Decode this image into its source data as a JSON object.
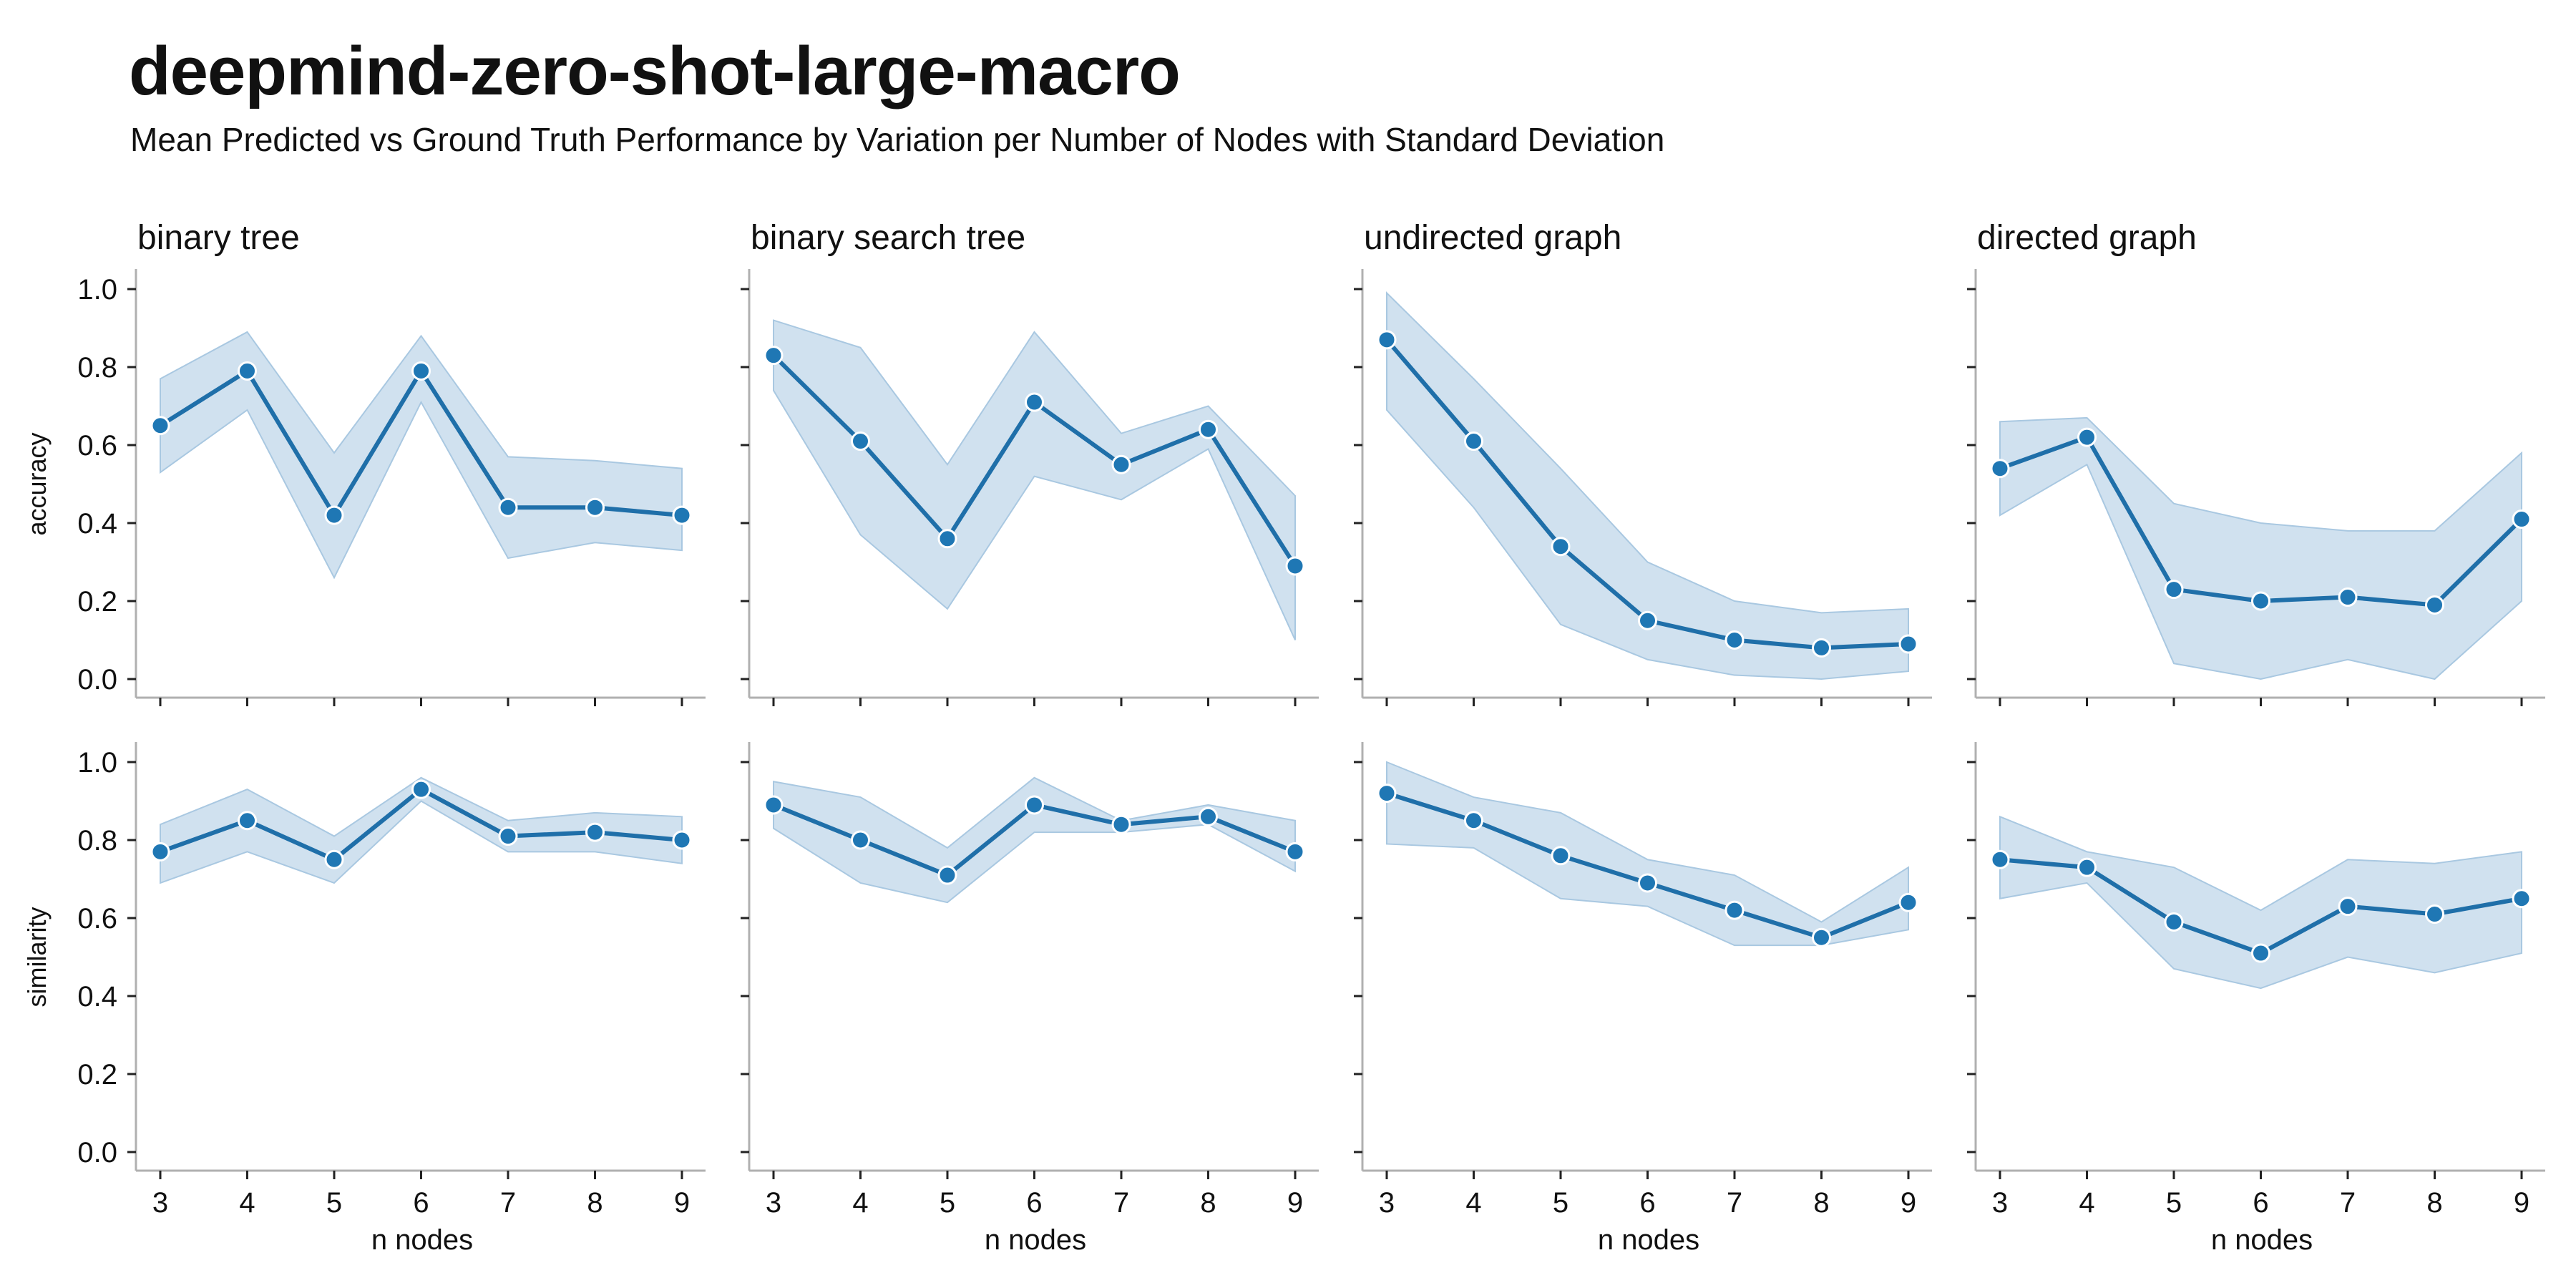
{
  "header": {
    "title": "deepmind-zero-shot-large-macro",
    "subtitle": "Mean Predicted vs Ground Truth Performance by Variation per Number of Nodes with Standard Deviation"
  },
  "colors": {
    "line": "#1f6fa9",
    "marker": "#1f77b4",
    "band": "#a9c8e1",
    "axis": "#b0b0b0"
  },
  "chart_data": {
    "type": "line",
    "title": "deepmind-zero-shot-large-macro",
    "subtitle": "Mean Predicted vs Ground Truth Performance by Variation per Number of Nodes with Standard Deviation",
    "x": [
      3,
      4,
      5,
      6,
      7,
      8,
      9
    ],
    "xlabel": "n nodes",
    "ylim": [
      0,
      1
    ],
    "yticks": [
      "0.0",
      "0.2",
      "0.4",
      "0.6",
      "0.8",
      "1.0"
    ],
    "grid": false,
    "columns": [
      "binary tree",
      "binary search tree",
      "undirected graph",
      "directed graph"
    ],
    "rows": [
      "accuracy",
      "similarity"
    ],
    "panels": [
      {
        "row": "accuracy",
        "column": "binary tree",
        "mean": [
          0.65,
          0.79,
          0.42,
          0.79,
          0.44,
          0.44,
          0.42
        ],
        "lower": [
          0.53,
          0.69,
          0.26,
          0.71,
          0.31,
          0.35,
          0.33
        ],
        "upper": [
          0.77,
          0.89,
          0.58,
          0.88,
          0.57,
          0.56,
          0.54
        ]
      },
      {
        "row": "accuracy",
        "column": "binary search tree",
        "mean": [
          0.83,
          0.61,
          0.36,
          0.71,
          0.55,
          0.64,
          0.29
        ],
        "lower": [
          0.74,
          0.37,
          0.18,
          0.52,
          0.46,
          0.59,
          0.1
        ],
        "upper": [
          0.92,
          0.85,
          0.55,
          0.89,
          0.63,
          0.7,
          0.47
        ]
      },
      {
        "row": "accuracy",
        "column": "undirected graph",
        "mean": [
          0.87,
          0.61,
          0.34,
          0.15,
          0.1,
          0.08,
          0.09
        ],
        "lower": [
          0.69,
          0.44,
          0.14,
          0.05,
          0.01,
          0.0,
          0.02
        ],
        "upper": [
          0.99,
          0.77,
          0.54,
          0.3,
          0.2,
          0.17,
          0.18
        ]
      },
      {
        "row": "accuracy",
        "column": "directed graph",
        "mean": [
          0.54,
          0.62,
          0.23,
          0.2,
          0.21,
          0.19,
          0.41
        ],
        "lower": [
          0.42,
          0.55,
          0.04,
          0.0,
          0.05,
          0.0,
          0.2
        ],
        "upper": [
          0.66,
          0.67,
          0.45,
          0.4,
          0.38,
          0.38,
          0.58
        ]
      },
      {
        "row": "similarity",
        "column": "binary tree",
        "mean": [
          0.77,
          0.85,
          0.75,
          0.93,
          0.81,
          0.82,
          0.8
        ],
        "lower": [
          0.69,
          0.77,
          0.69,
          0.9,
          0.77,
          0.77,
          0.74
        ],
        "upper": [
          0.84,
          0.93,
          0.81,
          0.96,
          0.85,
          0.87,
          0.86
        ]
      },
      {
        "row": "similarity",
        "column": "binary search tree",
        "mean": [
          0.89,
          0.8,
          0.71,
          0.89,
          0.84,
          0.86,
          0.77
        ],
        "lower": [
          0.83,
          0.69,
          0.64,
          0.82,
          0.82,
          0.84,
          0.72
        ],
        "upper": [
          0.95,
          0.91,
          0.78,
          0.96,
          0.85,
          0.89,
          0.85
        ]
      },
      {
        "row": "similarity",
        "column": "undirected graph",
        "mean": [
          0.92,
          0.85,
          0.76,
          0.69,
          0.62,
          0.55,
          0.64
        ],
        "lower": [
          0.79,
          0.78,
          0.65,
          0.63,
          0.53,
          0.53,
          0.57
        ],
        "upper": [
          1.0,
          0.91,
          0.87,
          0.75,
          0.71,
          0.59,
          0.73
        ]
      },
      {
        "row": "similarity",
        "column": "directed graph",
        "mean": [
          0.75,
          0.73,
          0.59,
          0.51,
          0.63,
          0.61,
          0.65
        ],
        "lower": [
          0.65,
          0.69,
          0.47,
          0.42,
          0.5,
          0.46,
          0.51
        ],
        "upper": [
          0.86,
          0.77,
          0.73,
          0.62,
          0.75,
          0.74,
          0.77
        ]
      }
    ]
  }
}
